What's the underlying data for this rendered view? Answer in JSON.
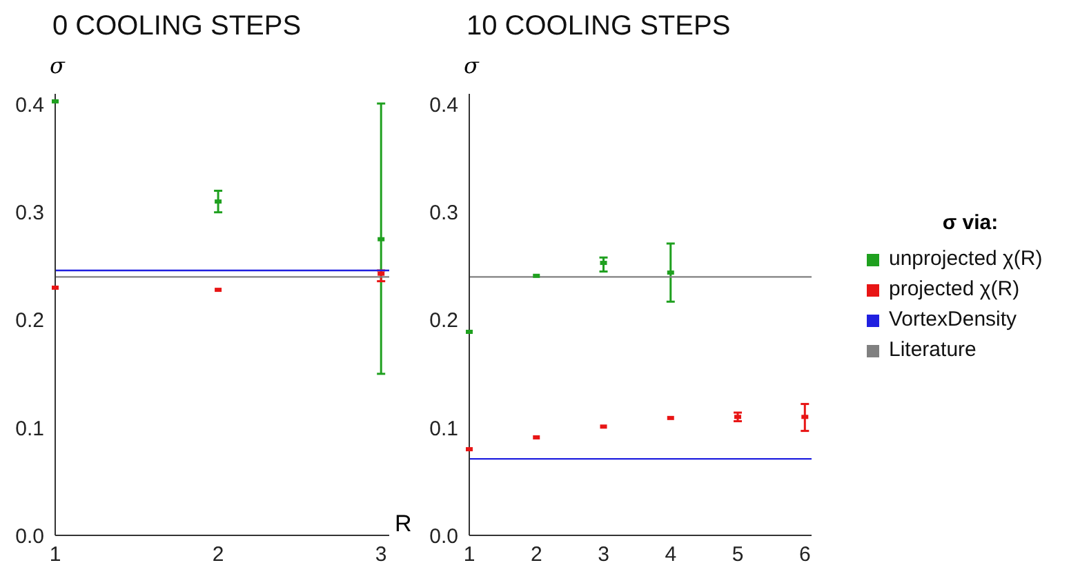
{
  "chart_data": [
    {
      "type": "scatter",
      "title": "0 COOLING STEPS",
      "xlabel": "R",
      "ylabel": "σ",
      "xlim": [
        1,
        3.05
      ],
      "xticks": [
        1,
        2,
        3
      ],
      "ylim": [
        0,
        0.41
      ],
      "yticks": [
        {
          "value": 0,
          "label": "0.0"
        },
        0.1,
        0.2,
        0.3,
        0.4
      ],
      "grid": false,
      "series": [
        {
          "color": "#1fa01f",
          "marker": "square",
          "x": [
            1,
            2,
            3
          ],
          "values": [
            0.403,
            0.31,
            0.275
          ],
          "errors": [
            null,
            [
              0.3,
              0.32
            ],
            [
              0.15,
              0.401
            ]
          ]
        },
        {
          "color": "#e81515",
          "marker": "square",
          "x": [
            1,
            2,
            3
          ],
          "values": [
            0.23,
            0.228,
            0.243
          ],
          "errors": [
            null,
            null,
            [
              0.236,
              0.246
            ]
          ]
        },
        {
          "type": "line",
          "marker": "none",
          "color": "#2020e0",
          "x": [
            1,
            3.05
          ],
          "values": [
            0.246,
            0.246
          ]
        },
        {
          "type": "line",
          "marker": "none",
          "color": "#808080",
          "x": [
            1,
            3.05
          ],
          "values": [
            0.24,
            0.24
          ]
        }
      ]
    },
    {
      "type": "scatter",
      "title": "10 COOLING STEPS",
      "ylabel": "σ",
      "xlim": [
        1,
        6.1
      ],
      "xticks": [
        1,
        2,
        3,
        4,
        5,
        6
      ],
      "ylim": [
        0,
        0.41
      ],
      "yticks": [
        {
          "value": 0,
          "label": "0.0"
        },
        0.1,
        0.2,
        0.3,
        0.4
      ],
      "grid": false,
      "legend": "right",
      "legend_title": "σ via:",
      "series": [
        {
          "name": "unprojected χ(R)",
          "color": "#1fa01f",
          "marker": "square",
          "x": [
            1,
            2,
            3,
            4
          ],
          "values": [
            0.189,
            0.241,
            0.253,
            0.244
          ],
          "errors": [
            null,
            null,
            [
              0.245,
              0.258
            ],
            [
              0.217,
              0.271
            ]
          ]
        },
        {
          "name": "projected χ(R)",
          "color": "#e81515",
          "marker": "square",
          "x": [
            1,
            2,
            3,
            4,
            5,
            6
          ],
          "values": [
            0.08,
            0.091,
            0.101,
            0.109,
            0.11,
            0.11
          ],
          "errors": [
            null,
            null,
            null,
            null,
            [
              0.106,
              0.114
            ],
            [
              0.097,
              0.122
            ]
          ]
        },
        {
          "name": "VortexDensity",
          "type": "line",
          "marker": "none",
          "color": "#2020e0",
          "x": [
            1,
            6.1
          ],
          "values": [
            0.071,
            0.071
          ]
        },
        {
          "name": "Literature",
          "type": "line",
          "marker": "none",
          "color": "#808080",
          "x": [
            1,
            6.1
          ],
          "values": [
            0.24,
            0.24
          ]
        }
      ]
    }
  ]
}
